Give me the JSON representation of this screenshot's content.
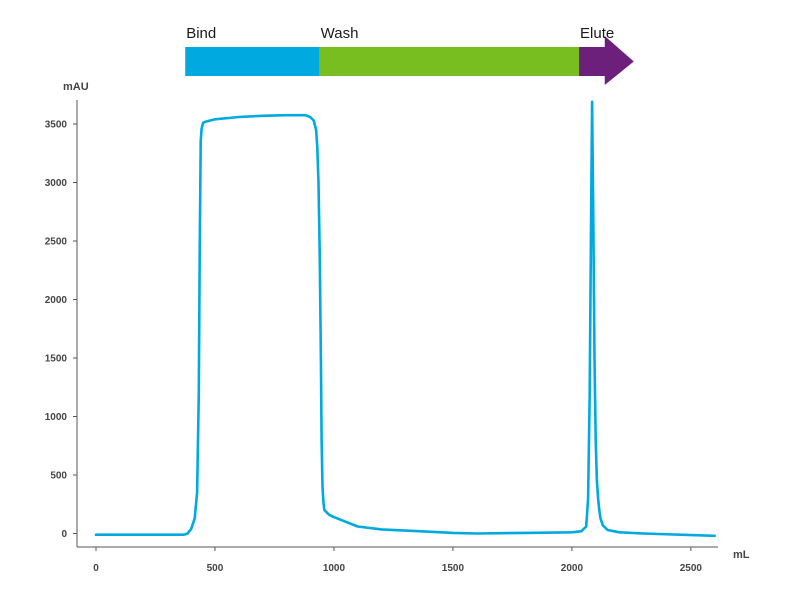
{
  "phases": [
    {
      "label": "Bind",
      "start": 375,
      "end": 940,
      "color": "#00a9e0"
    },
    {
      "label": "Wash",
      "start": 940,
      "end": 2030,
      "color": "#78be20"
    },
    {
      "label": "Elute",
      "start": 2030,
      "end": 2260,
      "color": "#6d1f7c"
    }
  ],
  "chart_data": {
    "type": "line",
    "title": "",
    "xlabel": "mL",
    "ylabel": "mAU",
    "xlim": [
      0,
      2600
    ],
    "ylim": [
      0,
      3700
    ],
    "xticks": [
      0,
      500,
      1000,
      1500,
      2000,
      2500
    ],
    "yticks": [
      0,
      500,
      1000,
      1500,
      2000,
      2500,
      3000,
      3500
    ],
    "grid": false,
    "legend": "none",
    "series": [
      {
        "color": "#00a9e0",
        "x": [
          0,
          200,
          370,
          385,
          400,
          415,
          425,
          432,
          436,
          440,
          444,
          450,
          460,
          480,
          500,
          600,
          700,
          800,
          880,
          900,
          915,
          925,
          930,
          935,
          940,
          945,
          948,
          952,
          956,
          960,
          980,
          1000,
          1050,
          1100,
          1200,
          1300,
          1400,
          1500,
          1600,
          1800,
          2000,
          2040,
          2060,
          2068,
          2075,
          2080,
          2085,
          2090,
          2095,
          2100,
          2105,
          2110,
          2115,
          2120,
          2130,
          2150,
          2200,
          2300,
          2600
        ],
        "y": [
          -10,
          -10,
          -10,
          0,
          40,
          130,
          350,
          1200,
          2400,
          3350,
          3460,
          3510,
          3520,
          3530,
          3540,
          3560,
          3570,
          3575,
          3575,
          3560,
          3530,
          3450,
          3300,
          3000,
          2400,
          1500,
          800,
          400,
          260,
          200,
          160,
          140,
          100,
          60,
          35,
          25,
          15,
          5,
          0,
          5,
          10,
          20,
          60,
          300,
          1200,
          2500,
          3690,
          2700,
          1500,
          800,
          450,
          300,
          200,
          130,
          70,
          30,
          10,
          0,
          -20
        ]
      }
    ]
  }
}
